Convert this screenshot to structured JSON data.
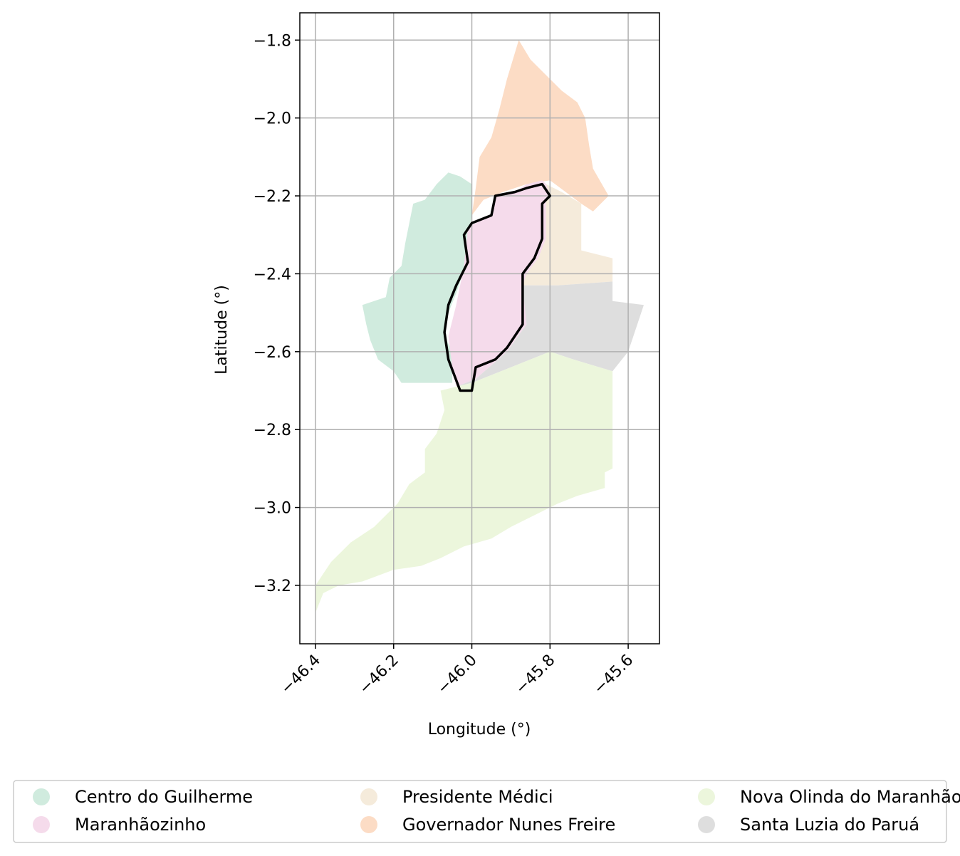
{
  "chart_data": {
    "type": "map",
    "xlabel": "Longitude (°)",
    "ylabel": "Latitude (°)",
    "xlim": [
      -46.44,
      -45.52
    ],
    "ylim": [
      -3.35,
      -1.73
    ],
    "grid": true,
    "x_ticks": [
      {
        "value": -46.4,
        "label": "−46.4"
      },
      {
        "value": -46.2,
        "label": "−46.2"
      },
      {
        "value": -46.0,
        "label": "−46.0"
      },
      {
        "value": -45.8,
        "label": "−45.8"
      },
      {
        "value": -45.6,
        "label": "−45.6"
      }
    ],
    "y_ticks": [
      {
        "value": -1.8,
        "label": "−1.8"
      },
      {
        "value": -2.0,
        "label": "−2.0"
      },
      {
        "value": -2.2,
        "label": "−2.2"
      },
      {
        "value": -2.4,
        "label": "−2.4"
      },
      {
        "value": -2.6,
        "label": "−2.6"
      },
      {
        "value": -2.8,
        "label": "−2.8"
      },
      {
        "value": -3.0,
        "label": "−3.0"
      },
      {
        "value": -3.2,
        "label": "−3.2"
      }
    ],
    "legend_placement": "bottom, below the map, 3 columns",
    "highlighted_region": "Maranhãozinho",
    "regions": [
      {
        "name": "Centro do Guilherme",
        "color": "#d0ebde",
        "outline": [
          [
            -46.0,
            -2.17
          ],
          [
            -46.03,
            -2.15
          ],
          [
            -46.06,
            -2.14
          ],
          [
            -46.09,
            -2.17
          ],
          [
            -46.12,
            -2.21
          ],
          [
            -46.15,
            -2.22
          ],
          [
            -46.16,
            -2.27
          ],
          [
            -46.17,
            -2.32
          ],
          [
            -46.18,
            -2.38
          ],
          [
            -46.21,
            -2.41
          ],
          [
            -46.22,
            -2.46
          ],
          [
            -46.28,
            -2.48
          ],
          [
            -46.27,
            -2.53
          ],
          [
            -46.26,
            -2.57
          ],
          [
            -46.24,
            -2.62
          ],
          [
            -46.2,
            -2.65
          ],
          [
            -46.18,
            -2.68
          ],
          [
            -46.05,
            -2.68
          ],
          [
            -46.05,
            -2.6
          ],
          [
            -46.07,
            -2.56
          ],
          [
            -46.06,
            -2.5
          ],
          [
            -46.04,
            -2.45
          ],
          [
            -46.02,
            -2.39
          ],
          [
            -46.01,
            -2.3
          ],
          [
            -46.0,
            -2.25
          ]
        ]
      },
      {
        "name": "Governador Nunes Freire",
        "color": "#fcdcc5",
        "outline": [
          [
            -45.88,
            -1.8
          ],
          [
            -45.85,
            -1.85
          ],
          [
            -45.81,
            -1.89
          ],
          [
            -45.77,
            -1.93
          ],
          [
            -45.73,
            -1.96
          ],
          [
            -45.71,
            -2.0
          ],
          [
            -45.7,
            -2.07
          ],
          [
            -45.69,
            -2.13
          ],
          [
            -45.65,
            -2.2
          ],
          [
            -45.69,
            -2.24
          ],
          [
            -45.72,
            -2.22
          ],
          [
            -45.76,
            -2.19
          ],
          [
            -45.8,
            -2.16
          ],
          [
            -45.86,
            -2.17
          ],
          [
            -45.92,
            -2.19
          ],
          [
            -45.97,
            -2.21
          ],
          [
            -46.0,
            -2.25
          ],
          [
            -45.99,
            -2.18
          ],
          [
            -45.98,
            -2.1
          ],
          [
            -45.95,
            -2.05
          ],
          [
            -45.93,
            -1.98
          ],
          [
            -45.91,
            -1.9
          ]
        ]
      },
      {
        "name": "Maranhãozinho",
        "color": "#f5dbeb",
        "outline": [
          [
            -45.95,
            -2.25
          ],
          [
            -45.94,
            -2.2
          ],
          [
            -45.89,
            -2.19
          ],
          [
            -45.86,
            -2.17
          ],
          [
            -45.82,
            -2.16
          ],
          [
            -45.79,
            -2.19
          ],
          [
            -45.81,
            -2.21
          ],
          [
            -45.81,
            -2.31
          ],
          [
            -45.83,
            -2.36
          ],
          [
            -45.86,
            -2.4
          ],
          [
            -45.86,
            -2.53
          ],
          [
            -45.91,
            -2.6
          ],
          [
            -45.99,
            -2.67
          ],
          [
            -46.04,
            -2.69
          ],
          [
            -46.05,
            -2.64
          ],
          [
            -46.06,
            -2.56
          ],
          [
            -46.04,
            -2.48
          ],
          [
            -46.02,
            -2.38
          ],
          [
            -46.01,
            -2.28
          ]
        ]
      },
      {
        "name": "Presidente Médici",
        "color": "#f5ebdb",
        "outline": [
          [
            -45.81,
            -2.17
          ],
          [
            -45.77,
            -2.19
          ],
          [
            -45.72,
            -2.22
          ],
          [
            -45.72,
            -2.34
          ],
          [
            -45.64,
            -2.36
          ],
          [
            -45.64,
            -2.42
          ],
          [
            -45.78,
            -2.43
          ],
          [
            -45.87,
            -2.43
          ],
          [
            -45.86,
            -2.4
          ],
          [
            -45.83,
            -2.36
          ],
          [
            -45.81,
            -2.31
          ],
          [
            -45.81,
            -2.21
          ],
          [
            -45.8,
            -2.2
          ]
        ]
      },
      {
        "name": "Santa Luzia do Paruá",
        "color": "#dedede",
        "outline": [
          [
            -45.87,
            -2.43
          ],
          [
            -45.78,
            -2.43
          ],
          [
            -45.64,
            -2.42
          ],
          [
            -45.64,
            -2.36
          ],
          [
            -45.64,
            -2.47
          ],
          [
            -45.56,
            -2.48
          ],
          [
            -45.6,
            -2.6
          ],
          [
            -45.64,
            -2.65
          ],
          [
            -45.74,
            -2.62
          ],
          [
            -45.8,
            -2.6
          ],
          [
            -45.9,
            -2.64
          ],
          [
            -46.0,
            -2.68
          ],
          [
            -46.04,
            -2.69
          ],
          [
            -45.99,
            -2.67
          ],
          [
            -45.91,
            -2.6
          ],
          [
            -45.86,
            -2.53
          ]
        ]
      },
      {
        "name": "Nova Olinda do Maranhão",
        "color": "#ecf6dc",
        "outline": [
          [
            -46.04,
            -2.69
          ],
          [
            -46.0,
            -2.68
          ],
          [
            -45.9,
            -2.64
          ],
          [
            -45.8,
            -2.6
          ],
          [
            -45.74,
            -2.62
          ],
          [
            -45.64,
            -2.65
          ],
          [
            -45.64,
            -2.9
          ],
          [
            -45.66,
            -2.91
          ],
          [
            -45.66,
            -2.95
          ],
          [
            -45.73,
            -2.97
          ],
          [
            -45.78,
            -2.99
          ],
          [
            -45.84,
            -3.02
          ],
          [
            -45.9,
            -3.05
          ],
          [
            -45.95,
            -3.08
          ],
          [
            -46.02,
            -3.1
          ],
          [
            -46.08,
            -3.13
          ],
          [
            -46.13,
            -3.15
          ],
          [
            -46.2,
            -3.16
          ],
          [
            -46.28,
            -3.19
          ],
          [
            -46.34,
            -3.2
          ],
          [
            -46.38,
            -3.22
          ],
          [
            -46.4,
            -3.27
          ],
          [
            -46.4,
            -3.2
          ],
          [
            -46.36,
            -3.14
          ],
          [
            -46.31,
            -3.09
          ],
          [
            -46.25,
            -3.05
          ],
          [
            -46.19,
            -2.99
          ],
          [
            -46.16,
            -2.94
          ],
          [
            -46.12,
            -2.91
          ],
          [
            -46.12,
            -2.85
          ],
          [
            -46.09,
            -2.81
          ],
          [
            -46.07,
            -2.75
          ],
          [
            -46.08,
            -2.7
          ]
        ]
      }
    ],
    "highlight_outline": [
      [
        -45.95,
        -2.25
      ],
      [
        -45.94,
        -2.2
      ],
      [
        -45.89,
        -2.19
      ],
      [
        -45.86,
        -2.18
      ],
      [
        -45.82,
        -2.17
      ],
      [
        -45.8,
        -2.2
      ],
      [
        -45.82,
        -2.22
      ],
      [
        -45.82,
        -2.31
      ],
      [
        -45.84,
        -2.36
      ],
      [
        -45.87,
        -2.4
      ],
      [
        -45.87,
        -2.53
      ],
      [
        -45.91,
        -2.59
      ],
      [
        -45.94,
        -2.62
      ],
      [
        -45.99,
        -2.64
      ],
      [
        -46.0,
        -2.7
      ],
      [
        -46.03,
        -2.7
      ],
      [
        -46.06,
        -2.62
      ],
      [
        -46.07,
        -2.55
      ],
      [
        -46.06,
        -2.48
      ],
      [
        -46.04,
        -2.43
      ],
      [
        -46.01,
        -2.37
      ],
      [
        -46.02,
        -2.3
      ],
      [
        -46.0,
        -2.27
      ]
    ]
  },
  "legend": {
    "items": [
      {
        "label": "Centro do Guilherme",
        "color": "#d0ebde"
      },
      {
        "label": "Maranhãozinho",
        "color": "#f5dbeb"
      },
      {
        "label": "Presidente Médici",
        "color": "#f5ebdb"
      },
      {
        "label": "Governador Nunes Freire",
        "color": "#fcdcc5"
      },
      {
        "label": "Nova Olinda do Maranhão",
        "color": "#ecf6dc"
      },
      {
        "label": "Santa Luzia do Paruá",
        "color": "#dedede"
      }
    ]
  }
}
